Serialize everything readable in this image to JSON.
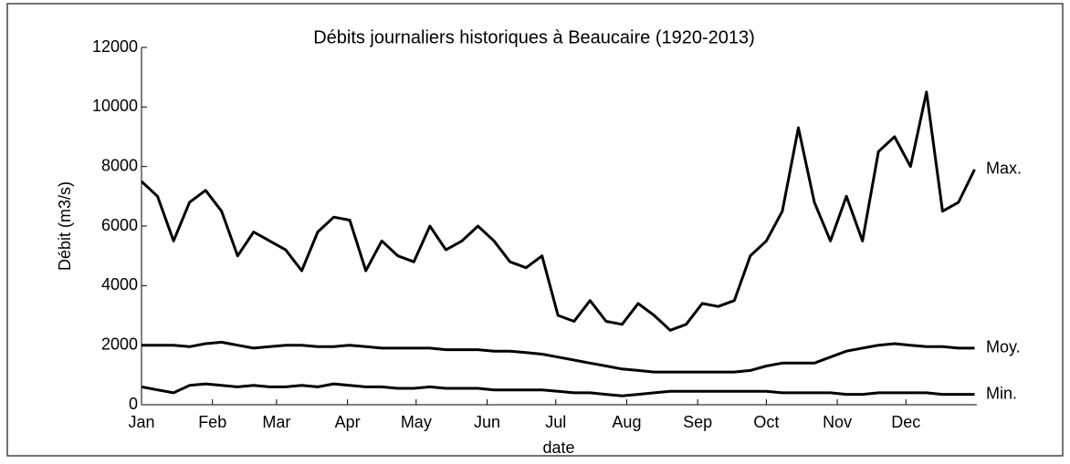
{
  "chart_data": {
    "type": "line",
    "title": "Débits journaliers historiques à Beaucaire (1920-2013)",
    "x_label": "date",
    "y_label": "Débit (m3/s)",
    "x": [
      1,
      8,
      15,
      22,
      29,
      36,
      43,
      50,
      57,
      64,
      71,
      78,
      85,
      92,
      99,
      106,
      113,
      120,
      127,
      134,
      141,
      148,
      155,
      162,
      169,
      176,
      183,
      190,
      197,
      204,
      211,
      218,
      225,
      232,
      239,
      246,
      253,
      260,
      267,
      274,
      281,
      288,
      295,
      302,
      309,
      316,
      323,
      330,
      337,
      344,
      351,
      358,
      365
    ],
    "series": [
      {
        "name": "Max.",
        "color": "#000000",
        "values": [
          7500,
          7000,
          5500,
          6800,
          7200,
          6500,
          5000,
          5800,
          5500,
          5200,
          4500,
          5800,
          6300,
          6200,
          4500,
          5500,
          5000,
          4800,
          6000,
          5200,
          5500,
          6000,
          5500,
          4800,
          4600,
          5000,
          3000,
          2800,
          3500,
          2800,
          2700,
          3400,
          3000,
          2500,
          2700,
          3400,
          3300,
          3500,
          5000,
          5500,
          6500,
          9300,
          6800,
          5500,
          7000,
          5500,
          8500,
          9000,
          8000,
          10500,
          6500,
          6800,
          7900
        ]
      },
      {
        "name": "Moy.",
        "color": "#000000",
        "values": [
          2000,
          2000,
          2000,
          1950,
          2050,
          2100,
          2000,
          1900,
          1950,
          2000,
          2000,
          1950,
          1950,
          2000,
          1950,
          1900,
          1900,
          1900,
          1900,
          1850,
          1850,
          1850,
          1800,
          1800,
          1750,
          1700,
          1600,
          1500,
          1400,
          1300,
          1200,
          1150,
          1100,
          1100,
          1100,
          1100,
          1100,
          1100,
          1150,
          1300,
          1400,
          1400,
          1400,
          1600,
          1800,
          1900,
          2000,
          2050,
          2000,
          1950,
          1950,
          1900,
          1900
        ]
      },
      {
        "name": "Min.",
        "color": "#000000",
        "values": [
          600,
          500,
          400,
          650,
          700,
          650,
          600,
          650,
          600,
          600,
          650,
          600,
          700,
          650,
          600,
          600,
          550,
          550,
          600,
          550,
          550,
          550,
          500,
          500,
          500,
          500,
          450,
          400,
          400,
          350,
          300,
          350,
          400,
          450,
          450,
          450,
          450,
          450,
          450,
          450,
          400,
          400,
          400,
          400,
          350,
          350,
          400,
          400,
          400,
          400,
          350,
          350,
          350
        ]
      }
    ],
    "xlim": [
      1,
      366
    ],
    "xticks": [
      {
        "value": 1,
        "label": "Jan"
      },
      {
        "value": 32,
        "label": "Feb"
      },
      {
        "value": 60,
        "label": "Mar"
      },
      {
        "value": 91,
        "label": "Apr"
      },
      {
        "value": 121,
        "label": "May"
      },
      {
        "value": 152,
        "label": "Jun"
      },
      {
        "value": 182,
        "label": "Jul"
      },
      {
        "value": 213,
        "label": "Aug"
      },
      {
        "value": 244,
        "label": "Sep"
      },
      {
        "value": 274,
        "label": "Oct"
      },
      {
        "value": 305,
        "label": "Nov"
      },
      {
        "value": 335,
        "label": "Dec"
      }
    ],
    "ylim": [
      0,
      12000
    ],
    "yticks": [
      0,
      2000,
      4000,
      6000,
      8000,
      10000,
      12000
    ]
  }
}
